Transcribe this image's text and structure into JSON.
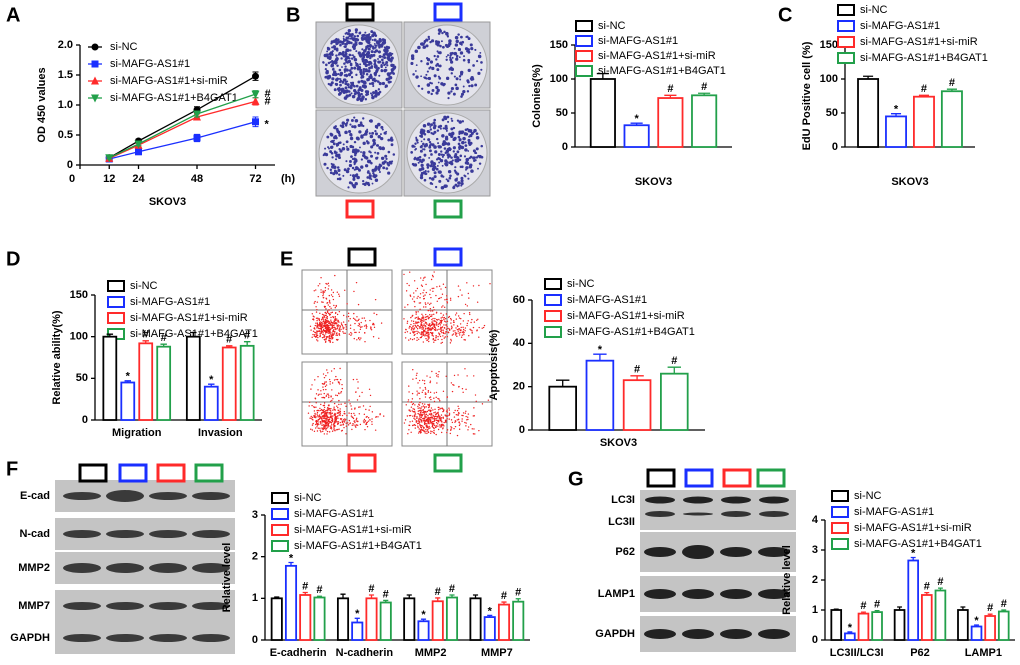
{
  "figure": {
    "panel_labels": [
      "A",
      "B",
      "C",
      "D",
      "E",
      "F",
      "G"
    ]
  },
  "chart_data": [
    {
      "type": "line",
      "xlabel": "SKOV3",
      "ylabel": "OD 450 values",
      "x_unit": "(h)",
      "x": [
        12,
        24,
        48,
        72
      ],
      "xlim": [
        0,
        80
      ],
      "xticks": [
        0,
        12,
        24,
        48,
        72
      ],
      "ylim": [
        0,
        2
      ],
      "yticks": [
        0,
        0.5,
        {
          "value": 1,
          "label": "1.0"
        },
        1.5,
        {
          "value": 2,
          "label": "2.0"
        }
      ],
      "series": [
        {
          "name": "si-NC",
          "color": "#000000",
          "marker": "circle",
          "values": [
            0.12,
            0.4,
            0.92,
            1.48
          ],
          "errors": [
            0.02,
            0.03,
            0.05,
            0.07
          ],
          "annotations": [
            null,
            null,
            null,
            null
          ]
        },
        {
          "name": "si-MAFG-AS1#1",
          "color": "#1a2fff",
          "marker": "square",
          "values": [
            0.1,
            0.22,
            0.45,
            0.72
          ],
          "errors": [
            0.02,
            0.03,
            0.06,
            0.08
          ],
          "annotations": [
            null,
            null,
            null,
            "*"
          ]
        },
        {
          "name": "si-MAFG-AS1#1+si-miR",
          "color": "#ff2a2a",
          "marker": "triangle",
          "values": [
            0.11,
            0.33,
            0.8,
            1.06
          ],
          "errors": [
            0.02,
            0.03,
            0.05,
            0.06
          ],
          "annotations": [
            null,
            null,
            null,
            "#"
          ]
        },
        {
          "name": "si-MAFG-AS1#1+B4GAT1",
          "color": "#22a04a",
          "marker": "triangle-down",
          "values": [
            0.12,
            0.35,
            0.85,
            1.18
          ],
          "errors": [
            0.02,
            0.03,
            0.05,
            0.06
          ],
          "annotations": [
            null,
            null,
            null,
            "#"
          ]
        }
      ]
    },
    {
      "type": "bar",
      "ylabel": "Colonies(%)",
      "categories": [
        "SKOV3"
      ],
      "ylim": [
        0,
        150
      ],
      "yticks": [
        0,
        50,
        100,
        150
      ],
      "series": [
        {
          "name": "si-NC",
          "color": "#000000",
          "values": [
            100
          ],
          "errors": [
            8
          ],
          "annotations": [
            null
          ]
        },
        {
          "name": "si-MAFG-AS1#1",
          "color": "#1a2fff",
          "values": [
            32
          ],
          "errors": [
            3
          ],
          "annotations": [
            "*"
          ]
        },
        {
          "name": "si-MAFG-AS1#1+si-miR",
          "color": "#ff2a2a",
          "values": [
            72
          ],
          "errors": [
            4
          ],
          "annotations": [
            "#"
          ]
        },
        {
          "name": "si-MAFG-AS1#1+B4GAT1",
          "color": "#22a04a",
          "values": [
            76
          ],
          "errors": [
            3
          ],
          "annotations": [
            "#"
          ]
        }
      ]
    },
    {
      "type": "bar",
      "ylabel": "EdU Positive cell  (%)",
      "categories": [
        "SKOV3"
      ],
      "ylim": [
        0,
        150
      ],
      "yticks": [
        0,
        50,
        100,
        150
      ],
      "series": [
        {
          "name": "si-NC",
          "color": "#000000",
          "values": [
            100
          ],
          "errors": [
            4
          ],
          "annotations": [
            null
          ]
        },
        {
          "name": "si-MAFG-AS1#1",
          "color": "#1a2fff",
          "values": [
            45
          ],
          "errors": [
            4
          ],
          "annotations": [
            "*"
          ]
        },
        {
          "name": "si-MAFG-AS1#1+si-miR",
          "color": "#ff2a2a",
          "values": [
            74
          ],
          "errors": [
            2
          ],
          "annotations": [
            "#"
          ]
        },
        {
          "name": "si-MAFG-AS1#1+B4GAT1",
          "color": "#22a04a",
          "values": [
            82
          ],
          "errors": [
            3
          ],
          "annotations": [
            "#"
          ]
        }
      ]
    },
    {
      "type": "bar",
      "ylabel": "Relative ability(%)",
      "categories": [
        "Migration",
        "Invasion"
      ],
      "ylim": [
        0,
        150
      ],
      "yticks": [
        0,
        50,
        100,
        150
      ],
      "series": [
        {
          "name": "si-NC",
          "color": "#000000",
          "values": [
            100,
            100
          ],
          "errors": [
            3,
            5
          ],
          "annotations": [
            null,
            null
          ]
        },
        {
          "name": "si-MAFG-AS1#1",
          "color": "#1a2fff",
          "values": [
            45,
            40
          ],
          "errors": [
            2,
            3
          ],
          "annotations": [
            "*",
            "*"
          ]
        },
        {
          "name": "si-MAFG-AS1#1+si-miR",
          "color": "#ff2a2a",
          "values": [
            92,
            87
          ],
          "errors": [
            3,
            2
          ],
          "annotations": [
            "#",
            "#"
          ]
        },
        {
          "name": "si-MAFG-AS1#1+B4GAT1",
          "color": "#22a04a",
          "values": [
            88,
            89
          ],
          "errors": [
            3,
            5
          ],
          "annotations": [
            "#",
            "#"
          ]
        }
      ]
    },
    {
      "type": "bar",
      "ylabel": "Apoptosis(%)",
      "categories": [
        "SKOV3"
      ],
      "ylim": [
        0,
        60
      ],
      "yticks": [
        0,
        20,
        40,
        60
      ],
      "series": [
        {
          "name": "si-NC",
          "color": "#000000",
          "values": [
            20
          ],
          "errors": [
            3
          ],
          "annotations": [
            null
          ]
        },
        {
          "name": "si-MAFG-AS1#1",
          "color": "#1a2fff",
          "values": [
            32
          ],
          "errors": [
            3
          ],
          "annotations": [
            "*"
          ]
        },
        {
          "name": "si-MAFG-AS1#1+si-miR",
          "color": "#ff2a2a",
          "values": [
            23
          ],
          "errors": [
            2
          ],
          "annotations": [
            "#"
          ]
        },
        {
          "name": "si-MAFG-AS1#1+B4GAT1",
          "color": "#22a04a",
          "values": [
            26
          ],
          "errors": [
            3
          ],
          "annotations": [
            "#"
          ]
        }
      ]
    },
    {
      "type": "bar",
      "ylabel": "Relative level",
      "categories": [
        "E-cadherin",
        "N-cadherin",
        "MMP2",
        "MMP7"
      ],
      "ylim": [
        0,
        3
      ],
      "yticks": [
        0,
        1,
        2,
        3
      ],
      "series": [
        {
          "name": "si-NC",
          "color": "#000000",
          "values": [
            1,
            1,
            1,
            1
          ],
          "errors": [
            0.03,
            0.1,
            0.08,
            0.08
          ],
          "annotations": [
            null,
            null,
            null,
            null
          ]
        },
        {
          "name": "si-MAFG-AS1#1",
          "color": "#1a2fff",
          "values": [
            1.78,
            0.42,
            0.45,
            0.55
          ],
          "errors": [
            0.08,
            0.1,
            0.05,
            0.04
          ],
          "annotations": [
            "*",
            "*",
            "*",
            "*"
          ]
        },
        {
          "name": "si-MAFG-AS1#1+si-miR",
          "color": "#ff2a2a",
          "values": [
            1.08,
            1,
            0.93,
            0.85
          ],
          "errors": [
            0.06,
            0.08,
            0.08,
            0.06
          ],
          "annotations": [
            "#",
            "#",
            "#",
            "#"
          ]
        },
        {
          "name": "si-MAFG-AS1#1+B4GAT1",
          "color": "#22a04a",
          "values": [
            1.02,
            0.9,
            1.02,
            0.92
          ],
          "errors": [
            0.03,
            0.05,
            0.06,
            0.07
          ],
          "annotations": [
            "#",
            "#",
            "#",
            "#"
          ]
        }
      ]
    },
    {
      "type": "bar",
      "ylabel": "Relative level",
      "categories": [
        "LC3II/LC3I",
        "P62",
        "LAMP1"
      ],
      "ylim": [
        0,
        4
      ],
      "yticks": [
        0,
        1,
        2,
        3,
        4
      ],
      "series": [
        {
          "name": "si-NC",
          "color": "#000000",
          "values": [
            1,
            1,
            1
          ],
          "errors": [
            0.03,
            0.1,
            0.1
          ],
          "annotations": [
            null,
            null,
            null
          ]
        },
        {
          "name": "si-MAFG-AS1#1",
          "color": "#1a2fff",
          "values": [
            0.22,
            2.65,
            0.45
          ],
          "errors": [
            0.05,
            0.1,
            0.05
          ],
          "annotations": [
            "*",
            "*",
            "*"
          ]
        },
        {
          "name": "si-MAFG-AS1#1+si-miR",
          "color": "#ff2a2a",
          "values": [
            0.88,
            1.5,
            0.8
          ],
          "errors": [
            0.05,
            0.08,
            0.06
          ],
          "annotations": [
            "#",
            "#",
            "#"
          ]
        },
        {
          "name": "si-MAFG-AS1#1+B4GAT1",
          "color": "#22a04a",
          "values": [
            0.93,
            1.65,
            0.95
          ],
          "errors": [
            0.05,
            0.08,
            0.05
          ],
          "annotations": [
            "#",
            "#",
            "#"
          ]
        }
      ]
    }
  ],
  "blot_F": {
    "labels": [
      "E-cad",
      "N-cad",
      "MMP2",
      "MMP7",
      "GAPDH"
    ]
  },
  "blot_G": {
    "labels": [
      "LC3I",
      "LC3II",
      "P62",
      "LAMP1",
      "GAPDH"
    ]
  }
}
